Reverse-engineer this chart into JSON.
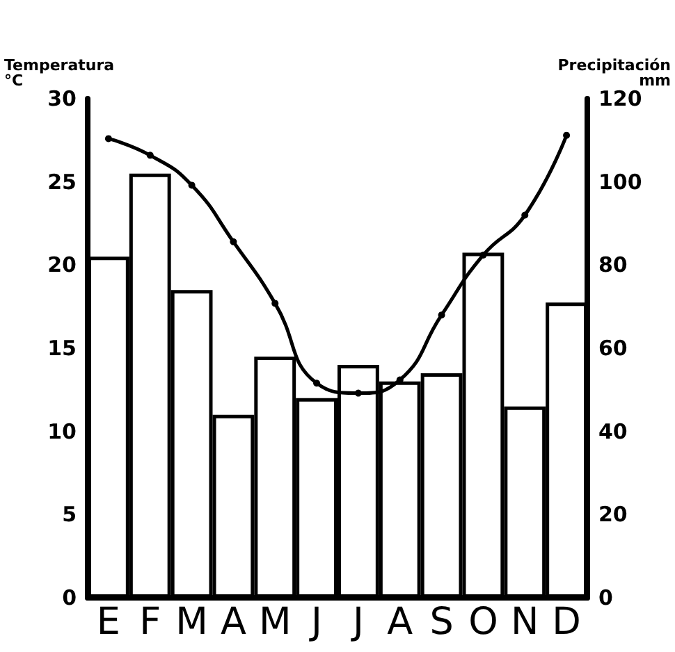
{
  "chart_data": {
    "type": "bar",
    "ylabel": "Temperatura\n°C",
    "y2label": "Precipitación\nmm",
    "categories": [
      "E",
      "F",
      "M",
      "A",
      "M",
      "J",
      "J",
      "A",
      "S",
      "O",
      "N",
      "D"
    ],
    "series": [
      {
        "axis": "y2",
        "color": "#ffffff",
        "values": [
          82,
          102,
          74,
          44,
          58,
          48,
          56,
          52,
          54,
          83,
          46,
          71
        ]
      },
      {
        "type": "line",
        "axis": "y",
        "color": "#000000",
        "marker": "circle",
        "line_style": "solid",
        "values": [
          27.6,
          26.6,
          24.8,
          21.4,
          17.7,
          12.9,
          12.3,
          13.1,
          17.0,
          20.6,
          23.0,
          27.8
        ]
      }
    ],
    "ylim": [
      0,
      30
    ],
    "yticks": [
      0,
      5,
      10,
      15,
      20,
      25,
      30
    ],
    "y2lim": [
      0,
      120
    ],
    "y2ticks": [
      0,
      20,
      40,
      60,
      80,
      100,
      120
    ],
    "grid": false
  }
}
